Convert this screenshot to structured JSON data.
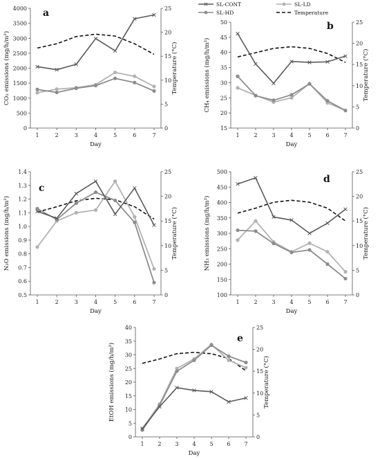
{
  "legend": {
    "entries": [
      {
        "label": "SL-CONT",
        "color": "#595959",
        "marker": "x",
        "dashed": false
      },
      {
        "label": "SL-LD",
        "color": "#b2b2b2",
        "marker": "circle",
        "dashed": false
      },
      {
        "label": "SL-HD",
        "color": "#8c8c8c",
        "marker": "circle",
        "dashed": false
      },
      {
        "label": "Temperature",
        "color": "#111111",
        "marker": "none",
        "dashed": true
      }
    ]
  },
  "colors": {
    "cont": "#595959",
    "ld": "#b2b2b2",
    "hd": "#8c8c8c",
    "temp": "#111111",
    "axis": "#555555"
  },
  "chart_data": [
    {
      "panel": "a",
      "type": "line",
      "xlabel": "Day",
      "ylabel": "CO₂ emissions (mg/h/m²)",
      "y2label": "Temperature (°C)",
      "x": [
        1,
        2,
        3,
        4,
        5,
        6,
        7
      ],
      "ylim": [
        0,
        4000
      ],
      "yticks": [
        0,
        500,
        1000,
        1500,
        2000,
        2500,
        3000,
        3500,
        4000
      ],
      "y2lim": [
        0,
        25
      ],
      "y2ticks": [
        0,
        5,
        10,
        15,
        20,
        25
      ],
      "series": [
        {
          "name": "SL-CONT",
          "values": [
            2050,
            1950,
            2130,
            2990,
            2580,
            3650,
            3780
          ]
        },
        {
          "name": "SL-LD",
          "values": [
            1180,
            1300,
            1350,
            1450,
            1860,
            1730,
            1390
          ]
        },
        {
          "name": "SL-HD",
          "values": [
            1290,
            1190,
            1330,
            1420,
            1660,
            1520,
            1240
          ]
        },
        {
          "name": "Temperature",
          "axis": "y2",
          "values": [
            16.7,
            17.6,
            19.1,
            19.6,
            19.2,
            17.6,
            15.4
          ]
        }
      ]
    },
    {
      "panel": "b",
      "type": "line",
      "xlabel": "Day",
      "ylabel": "CH₄ emissions (mg/h/m²)",
      "y2label": "Temperature (°C)",
      "x": [
        1,
        2,
        3,
        4,
        5,
        6,
        7
      ],
      "ylim": [
        15,
        50
      ],
      "yticks": [
        15,
        20,
        25,
        30,
        35,
        40,
        45,
        50
      ],
      "y2lim": [
        0,
        25
      ],
      "y2ticks": [
        0,
        5,
        10,
        15,
        20,
        25
      ],
      "series": [
        {
          "name": "SL-CONT",
          "values": [
            46.2,
            36.2,
            29.8,
            37.0,
            36.7,
            36.9,
            38.8
          ]
        },
        {
          "name": "SL-LD",
          "values": [
            28.3,
            25.8,
            23.6,
            25.0,
            29.7,
            23.3,
            20.8
          ]
        },
        {
          "name": "SL-HD",
          "values": [
            32.1,
            25.7,
            24.2,
            26.0,
            29.6,
            24.0,
            20.8
          ]
        },
        {
          "name": "Temperature",
          "axis": "y2",
          "values": [
            16.8,
            17.8,
            18.8,
            19.2,
            18.8,
            17.6,
            15.5
          ]
        }
      ]
    },
    {
      "panel": "c",
      "type": "line",
      "xlabel": "Day",
      "ylabel": "N₂O emissions (mg/h/m²)",
      "y2label": "Temperature (°C)",
      "x": [
        1,
        2,
        3,
        4,
        5,
        6,
        7
      ],
      "ylim": [
        0.5,
        1.4
      ],
      "yticks": [
        0.5,
        0.6,
        0.7,
        0.8,
        0.9,
        1.0,
        1.1,
        1.2,
        1.3,
        1.4
      ],
      "y2lim": [
        0,
        25
      ],
      "y2ticks": [
        0,
        5,
        10,
        15,
        20,
        25
      ],
      "series": [
        {
          "name": "SL-CONT",
          "values": [
            1.11,
            1.06,
            1.24,
            1.33,
            1.09,
            1.28,
            1.01
          ]
        },
        {
          "name": "SL-LD",
          "values": [
            0.85,
            1.04,
            1.1,
            1.12,
            1.33,
            1.07,
            0.69
          ]
        },
        {
          "name": "SL-HD",
          "values": [
            1.13,
            1.05,
            1.17,
            1.25,
            1.19,
            1.03,
            0.59
          ]
        },
        {
          "name": "Temperature",
          "axis": "y2",
          "values": [
            16.8,
            17.9,
            19.1,
            19.6,
            19.3,
            17.9,
            15.4
          ]
        }
      ]
    },
    {
      "panel": "d",
      "type": "line",
      "xlabel": "Day",
      "ylabel": "NH₃ emissions (mg/h/m²)",
      "y2label": "Temperature (°C)",
      "x": [
        1,
        2,
        3,
        4,
        5,
        6,
        7
      ],
      "ylim": [
        100,
        500
      ],
      "yticks": [
        100,
        150,
        200,
        250,
        300,
        350,
        400,
        450,
        500
      ],
      "y2lim": [
        0,
        25
      ],
      "y2ticks": [
        0,
        5,
        10,
        15,
        20,
        25
      ],
      "series": [
        {
          "name": "SL-CONT",
          "values": [
            460,
            480,
            353,
            343,
            300,
            333,
            378
          ]
        },
        {
          "name": "SL-LD",
          "values": [
            278,
            340,
            272,
            240,
            268,
            240,
            175
          ]
        },
        {
          "name": "SL-HD",
          "values": [
            310,
            307,
            267,
            238,
            246,
            200,
            153
          ]
        },
        {
          "name": "Temperature",
          "axis": "y2",
          "values": [
            16.6,
            17.6,
            18.8,
            19.2,
            18.8,
            17.6,
            15.0
          ]
        }
      ]
    },
    {
      "panel": "e",
      "type": "line",
      "xlabel": "Day",
      "ylabel": "EtOH emissions (mg/h/m²)",
      "y2label": "Temperature (°C)",
      "x": [
        1,
        2,
        3,
        4,
        5,
        6,
        7
      ],
      "ylim": [
        0,
        40
      ],
      "yticks": [
        0,
        5,
        10,
        15,
        20,
        25,
        30,
        35,
        40
      ],
      "y2lim": [
        0,
        25
      ],
      "y2ticks": [
        0,
        5,
        10,
        15,
        20,
        25
      ],
      "series": [
        {
          "name": "SL-CONT",
          "values": [
            3.0,
            11.0,
            18.0,
            17.0,
            16.5,
            12.8,
            14.2
          ]
        },
        {
          "name": "SL-LD",
          "values": [
            3.0,
            12.0,
            25.0,
            28.5,
            33.8,
            28.0,
            25.3
          ]
        },
        {
          "name": "SL-HD",
          "values": [
            2.5,
            11.5,
            24.0,
            28.0,
            33.5,
            29.5,
            27.2
          ]
        },
        {
          "name": "Temperature",
          "axis": "y2",
          "values": [
            16.8,
            17.8,
            19.0,
            19.3,
            19.0,
            17.9,
            15.1
          ]
        }
      ]
    }
  ]
}
